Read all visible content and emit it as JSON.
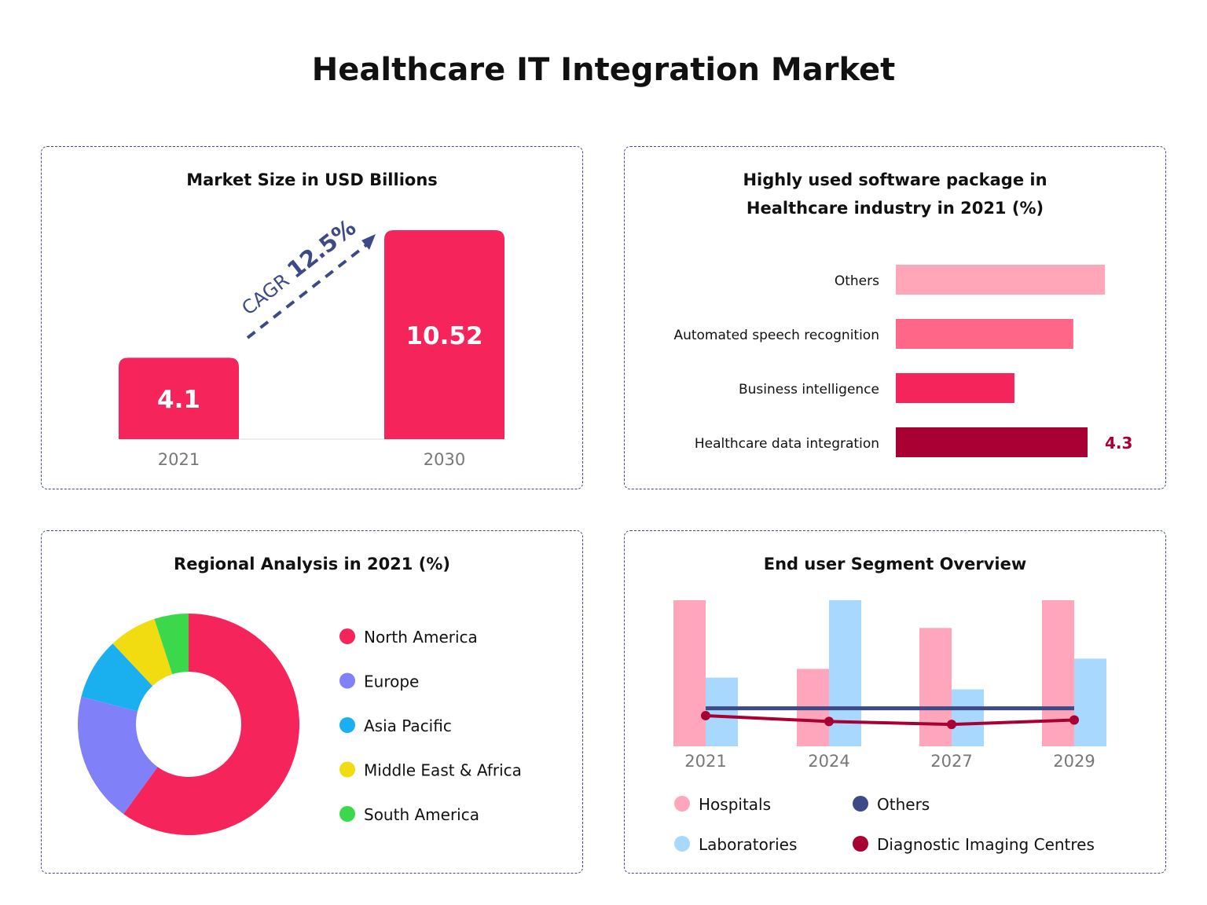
{
  "title": "Healthcare IT Integration Market",
  "colors": {
    "accent": "#f5245a",
    "navy": "#3d4a86",
    "maroon": "#a80034"
  },
  "chart_data": [
    {
      "type": "bar",
      "title": "Market Size in USD Billions",
      "categories": [
        "2021",
        "2030"
      ],
      "values": [
        4.1,
        10.52
      ],
      "value_labels": [
        "4.1",
        "10.52"
      ],
      "annotation": {
        "prefix": "CAGR",
        "value": "12.5%"
      },
      "color": "#f5245a"
    },
    {
      "type": "bar",
      "orientation": "horizontal",
      "title_lines": [
        "Highly used software package in",
        "Healthcare industry in 2021 (%)"
      ],
      "categories": [
        "Others",
        "Automated speech recognition",
        "Business intelligence",
        "Healthcare data integration"
      ],
      "values": [
        4.69,
        3.98,
        2.66,
        4.3
      ],
      "value_labels": [
        "",
        "",
        "",
        "4.3"
      ],
      "colors": [
        "#ffa6b8",
        "#ff6688",
        "#f5245a",
        "#a80034"
      ]
    },
    {
      "type": "pie",
      "title": "Regional Analysis in 2021 (%)",
      "donut": true,
      "categories": [
        "North America",
        "Europe",
        "Asia Pacific",
        "Middle East & Africa",
        "South America"
      ],
      "values": [
        60,
        19,
        9,
        7,
        5
      ],
      "colors": [
        "#f5245a",
        "#8080f8",
        "#1ab0f0",
        "#f0dc10",
        "#3cd84c"
      ],
      "legend": "right"
    },
    {
      "type": "bar",
      "title": "End user Segment Overview",
      "categories": [
        "2021",
        "2024",
        "2027",
        "2029"
      ],
      "ylim": [
        0,
        100
      ],
      "series": [
        {
          "name": "Hospitals",
          "kind": "bar",
          "values": [
            100,
            53,
            81,
            100
          ],
          "color": "#ffa6bc"
        },
        {
          "name": "Laboratories",
          "kind": "bar",
          "values": [
            47,
            100,
            39,
            60
          ],
          "color": "#a8d8fe"
        },
        {
          "name": "Others",
          "kind": "line",
          "values": [
            26,
            26,
            26,
            26
          ],
          "color": "#3d4a86"
        },
        {
          "name": "Diagnostic Imaging Centres",
          "kind": "line",
          "values": [
            21,
            17,
            15,
            18
          ],
          "color": "#a80034"
        }
      ],
      "legend": "bottom"
    }
  ]
}
